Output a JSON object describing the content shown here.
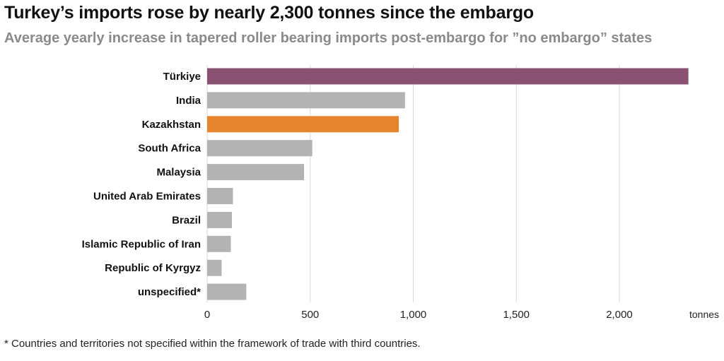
{
  "header": {
    "title": "Turkey’s imports rose by nearly 2,300 tonnes since the embargo",
    "subtitle": "Average yearly increase in tapered roller bearing imports post-embargo for ”no embargo” states"
  },
  "footnote": "* Countries and territories not specified within the framework of trade with third countries.",
  "colors": {
    "highlight_purple": "#8a5173",
    "highlight_orange": "#e5862e",
    "default_bar": "#b3b3b3",
    "gridline": "#d9d9d9"
  },
  "chart_data": {
    "type": "bar",
    "orientation": "horizontal",
    "title": "Turkey’s imports rose by nearly 2,300 tonnes since the embargo",
    "subtitle": "Average yearly increase in tapered roller bearing imports post-embargo for ”no embargo” states",
    "categories": [
      "Türkiye",
      "India",
      "Kazakhstan",
      "South Africa",
      "Malaysia",
      "United Arab Emirates",
      "Brazil",
      "Islamic Republic of Iran",
      "Republic of Kyrgyz",
      "unspecified*"
    ],
    "values": [
      2335,
      960,
      930,
      510,
      470,
      125,
      120,
      115,
      70,
      190
    ],
    "bar_colors": [
      "#8a5173",
      "#b3b3b3",
      "#e5862e",
      "#b3b3b3",
      "#b3b3b3",
      "#b3b3b3",
      "#b3b3b3",
      "#b3b3b3",
      "#b3b3b3",
      "#b3b3b3"
    ],
    "xlim": [
      0,
      2500
    ],
    "xticks": [
      0,
      500,
      1000,
      1500,
      2000
    ],
    "xtick_labels": [
      "0",
      "500",
      "1,000",
      "1,500",
      "2,000"
    ],
    "xlabel": "tonnes",
    "ylabel": "",
    "grid": "vertical"
  }
}
